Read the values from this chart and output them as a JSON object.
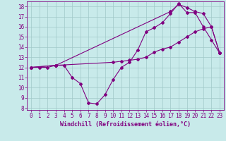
{
  "xlabel": "Windchill (Refroidissement éolien,°C)",
  "bg_color": "#c8eaea",
  "grid_color": "#a0c8c8",
  "line_color": "#800080",
  "xlim": [
    -0.5,
    23.5
  ],
  "ylim": [
    7.8,
    18.5
  ],
  "xticks": [
    0,
    1,
    2,
    3,
    4,
    5,
    6,
    7,
    8,
    9,
    10,
    11,
    12,
    13,
    14,
    15,
    16,
    17,
    18,
    19,
    20,
    21,
    22,
    23
  ],
  "yticks": [
    8,
    9,
    10,
    11,
    12,
    13,
    14,
    15,
    16,
    17,
    18
  ],
  "line1_x": [
    0,
    1,
    2,
    3,
    4,
    5,
    6,
    7,
    8,
    9,
    10,
    11,
    12,
    13,
    14,
    15,
    16,
    17,
    18,
    19,
    20,
    21,
    22,
    23
  ],
  "line1_y": [
    12,
    12,
    12,
    12.2,
    12.2,
    11,
    10.4,
    8.5,
    8.4,
    9.3,
    10.8,
    12,
    12.5,
    13.7,
    15.5,
    15.9,
    16.4,
    17.3,
    18.3,
    17.4,
    17.4,
    16,
    14.7,
    13.4
  ],
  "line2_x": [
    0,
    3,
    10,
    11,
    12,
    13,
    14,
    15,
    16,
    17,
    18,
    19,
    20,
    21,
    22,
    23
  ],
  "line2_y": [
    12,
    12.2,
    12.5,
    12.6,
    12.7,
    12.8,
    13.0,
    13.5,
    13.8,
    14.0,
    14.5,
    15.0,
    15.5,
    15.8,
    16.0,
    13.4
  ],
  "line3_x": [
    0,
    3,
    17,
    18,
    19,
    20,
    21,
    22,
    23
  ],
  "line3_y": [
    12,
    12.2,
    17.5,
    18.2,
    17.9,
    17.5,
    17.3,
    16.0,
    13.4
  ],
  "marker_size": 2.0,
  "line_width": 0.8,
  "tick_fontsize": 5.5,
  "xlabel_fontsize": 6.0
}
